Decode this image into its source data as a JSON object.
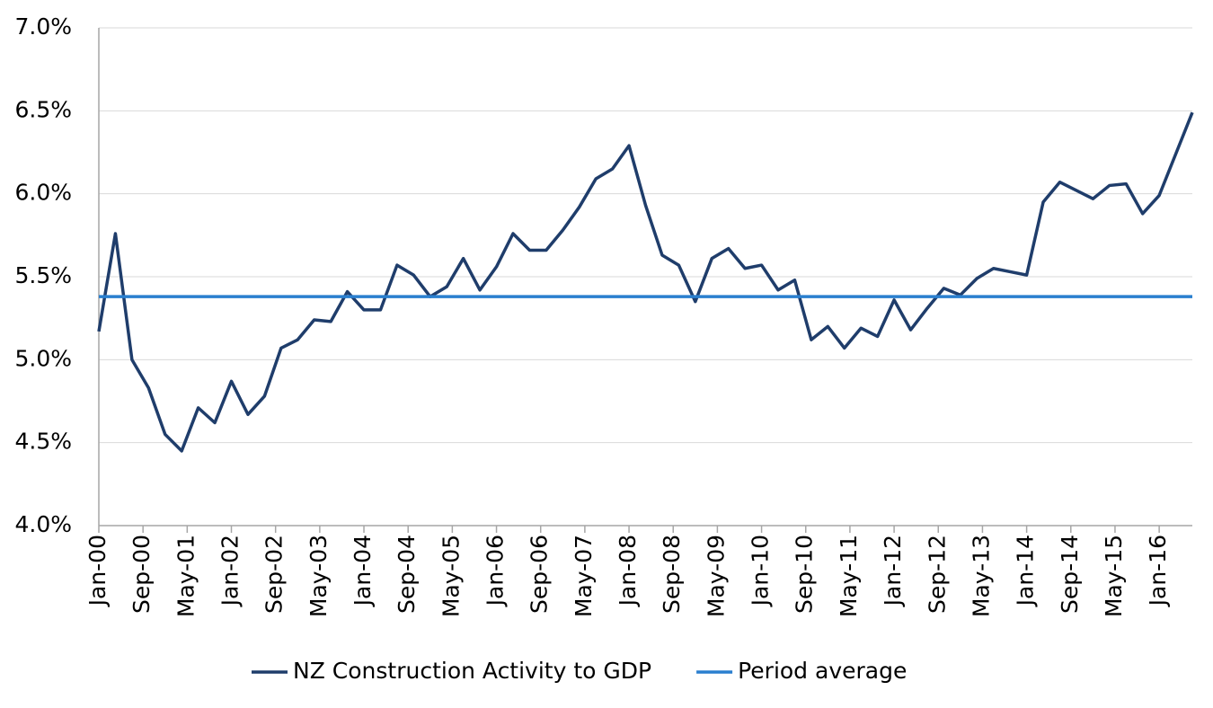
{
  "chart_data": {
    "type": "line",
    "x": [
      "2000-01",
      "2000-04",
      "2000-07",
      "2000-10",
      "2001-01",
      "2001-04",
      "2001-07",
      "2001-10",
      "2002-01",
      "2002-04",
      "2002-07",
      "2002-10",
      "2003-01",
      "2003-04",
      "2003-07",
      "2003-10",
      "2004-01",
      "2004-04",
      "2004-07",
      "2004-10",
      "2005-01",
      "2005-04",
      "2005-07",
      "2005-10",
      "2006-01",
      "2006-04",
      "2006-07",
      "2006-10",
      "2007-01",
      "2007-04",
      "2007-07",
      "2007-10",
      "2008-01",
      "2008-04",
      "2008-07",
      "2008-10",
      "2009-01",
      "2009-04",
      "2009-07",
      "2009-10",
      "2010-01",
      "2010-04",
      "2010-07",
      "2010-10",
      "2011-01",
      "2011-04",
      "2011-07",
      "2011-10",
      "2012-01",
      "2012-04",
      "2012-07",
      "2012-10",
      "2013-01",
      "2013-04",
      "2013-07",
      "2013-10",
      "2014-01",
      "2014-04",
      "2014-07",
      "2014-10",
      "2015-01",
      "2015-04",
      "2015-07",
      "2015-10",
      "2016-01",
      "2016-04",
      "2016-07"
    ],
    "series": [
      {
        "name": "NZ Construction Activity to GDP",
        "color": "#1f3d6b",
        "values": [
          5.17,
          5.76,
          5.0,
          4.83,
          4.55,
          4.45,
          4.71,
          4.62,
          4.87,
          4.67,
          4.78,
          5.07,
          5.12,
          5.24,
          5.23,
          5.41,
          5.3,
          5.3,
          5.57,
          5.51,
          5.38,
          5.44,
          5.61,
          5.42,
          5.56,
          5.76,
          5.66,
          5.66,
          5.78,
          5.92,
          6.09,
          6.15,
          6.29,
          5.93,
          5.63,
          5.57,
          5.35,
          5.61,
          5.67,
          5.55,
          5.57,
          5.42,
          5.48,
          5.12,
          5.2,
          5.07,
          5.19,
          5.14,
          5.36,
          5.18,
          5.31,
          5.43,
          5.39,
          5.49,
          5.55,
          5.53,
          5.51,
          5.95,
          6.07,
          6.02,
          5.97,
          6.05,
          6.06,
          5.88,
          5.99,
          6.24,
          6.49
        ]
      },
      {
        "name": "Period average",
        "color": "#2a7fcf",
        "values": [
          5.38,
          5.38,
          5.38,
          5.38,
          5.38,
          5.38,
          5.38,
          5.38,
          5.38,
          5.38,
          5.38,
          5.38,
          5.38,
          5.38,
          5.38,
          5.38,
          5.38,
          5.38,
          5.38,
          5.38,
          5.38,
          5.38,
          5.38,
          5.38,
          5.38,
          5.38,
          5.38,
          5.38,
          5.38,
          5.38,
          5.38,
          5.38,
          5.38,
          5.38,
          5.38,
          5.38,
          5.38,
          5.38,
          5.38,
          5.38,
          5.38,
          5.38,
          5.38,
          5.38,
          5.38,
          5.38,
          5.38,
          5.38,
          5.38,
          5.38,
          5.38,
          5.38,
          5.38,
          5.38,
          5.38,
          5.38,
          5.38,
          5.38,
          5.38,
          5.38,
          5.38,
          5.38,
          5.38,
          5.38,
          5.38,
          5.38,
          5.38
        ]
      }
    ],
    "xlim": [
      "2000-01",
      "2016-07"
    ],
    "xticks": [
      {
        "value": "2000-01",
        "label": "Jan-00"
      },
      {
        "value": "2000-09",
        "label": "Sep-00"
      },
      {
        "value": "2001-05",
        "label": "May-01"
      },
      {
        "value": "2002-01",
        "label": "Jan-02"
      },
      {
        "value": "2002-09",
        "label": "Sep-02"
      },
      {
        "value": "2003-05",
        "label": "May-03"
      },
      {
        "value": "2004-01",
        "label": "Jan-04"
      },
      {
        "value": "2004-09",
        "label": "Sep-04"
      },
      {
        "value": "2005-05",
        "label": "May-05"
      },
      {
        "value": "2006-01",
        "label": "Jan-06"
      },
      {
        "value": "2006-09",
        "label": "Sep-06"
      },
      {
        "value": "2007-05",
        "label": "May-07"
      },
      {
        "value": "2008-01",
        "label": "Jan-08"
      },
      {
        "value": "2008-09",
        "label": "Sep-08"
      },
      {
        "value": "2009-05",
        "label": "May-09"
      },
      {
        "value": "2010-01",
        "label": "Jan-10"
      },
      {
        "value": "2010-09",
        "label": "Sep-10"
      },
      {
        "value": "2011-05",
        "label": "May-11"
      },
      {
        "value": "2012-01",
        "label": "Jan-12"
      },
      {
        "value": "2012-09",
        "label": "Sep-12"
      },
      {
        "value": "2013-05",
        "label": "May-13"
      },
      {
        "value": "2014-01",
        "label": "Jan-14"
      },
      {
        "value": "2014-09",
        "label": "Sep-14"
      },
      {
        "value": "2015-05",
        "label": "May-15"
      },
      {
        "value": "2016-01",
        "label": "Jan-16"
      }
    ],
    "ylim": [
      4.0,
      7.0
    ],
    "yticks": [
      {
        "value": 4.0,
        "label": "4.0%"
      },
      {
        "value": 4.5,
        "label": "4.5%"
      },
      {
        "value": 5.0,
        "label": "5.0%"
      },
      {
        "value": 5.5,
        "label": "5.5%"
      },
      {
        "value": 6.0,
        "label": "6.0%"
      },
      {
        "value": 6.5,
        "label": "6.5%"
      },
      {
        "value": 7.0,
        "label": "7.0%"
      }
    ],
    "grid": true,
    "legend": "bottom"
  }
}
